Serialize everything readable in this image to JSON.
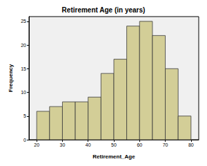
{
  "chart_data": {
    "type": "histogram",
    "title": "Retirement Age (in years)",
    "xlabel": "Retirement_Age",
    "ylabel": "Frequency",
    "bins": [
      20,
      25,
      30,
      35,
      40,
      45,
      50,
      55,
      60,
      65,
      70,
      75,
      80
    ],
    "values": [
      6,
      7,
      8,
      8,
      9,
      14,
      17,
      24,
      25,
      22,
      15,
      5
    ],
    "color": "#d3ce97",
    "xlim": [
      17,
      83
    ],
    "xticks": [
      20,
      30,
      40,
      50,
      60,
      70,
      80
    ],
    "ylim": [
      0,
      26
    ],
    "yticks": [
      0,
      5,
      10,
      15,
      20,
      25
    ],
    "grid": false
  }
}
